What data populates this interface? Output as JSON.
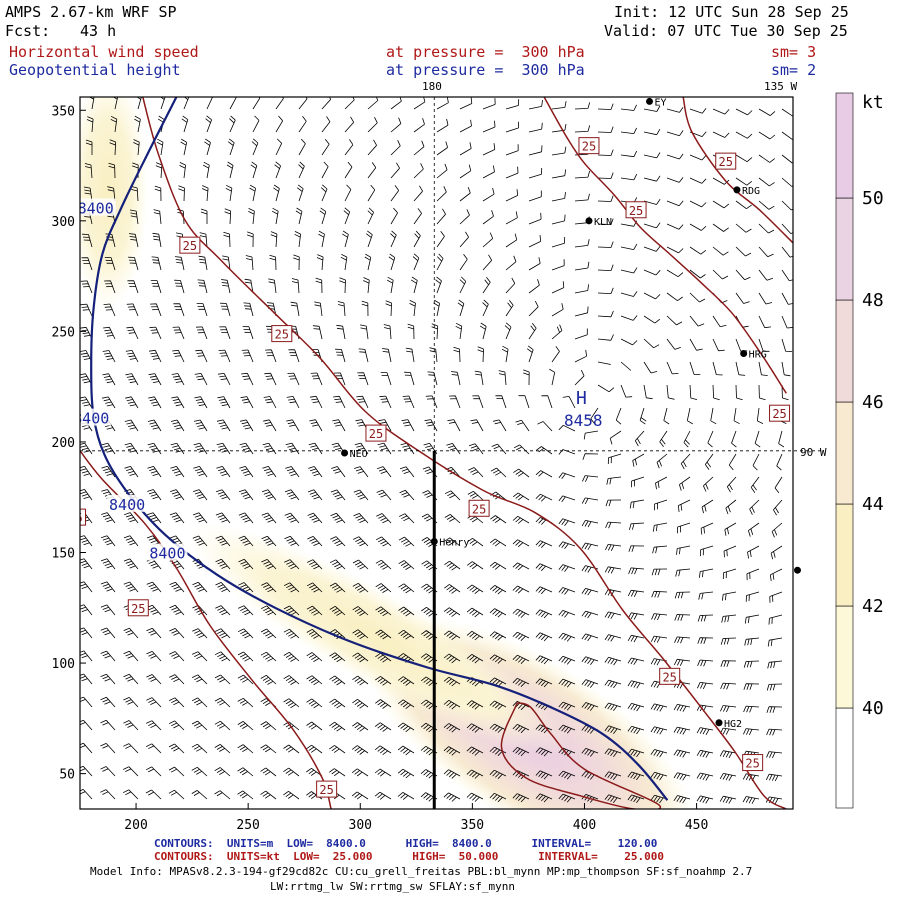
{
  "header": {
    "model": "AMPS 2.67-km WRF SP",
    "fcst_label": "Fcst:",
    "fcst_hours": "43 h",
    "init": "Init: 12 UTC Sun 28 Sep 25",
    "valid": "Valid: 07 UTC Tue 30 Sep 25",
    "field1": "Horizontal wind speed",
    "field1_level": "at pressure =  300 hPa",
    "field1_sm": "sm= 3",
    "field2": "Geopotential height",
    "field2_level": "at pressure =  300 hPa",
    "field2_sm": "sm= 2"
  },
  "map_labels": {
    "lon_180": "180",
    "lon_135w": "135 W",
    "lon_90w": "90 W",
    "high_letter": "H",
    "high_value": "8458"
  },
  "stations": [
    {
      "name": "EY",
      "x": 429,
      "y": 354
    },
    {
      "name": "RDG",
      "x": 468,
      "y": 314
    },
    {
      "name": "KLN",
      "x": 402,
      "y": 300
    },
    {
      "name": "HRG",
      "x": 471,
      "y": 240
    },
    {
      "name": "NEO",
      "x": 293,
      "y": 195
    },
    {
      "name": "Henry",
      "x": 333,
      "y": 155
    },
    {
      "name": "HG2",
      "x": 460,
      "y": 73
    },
    {
      "name": "",
      "x": 495,
      "y": 142
    }
  ],
  "footer": {
    "contours_height": "CONTOURS:  UNITS=m  LOW=  8400.0      HIGH=  8400.0      INTERVAL=    120.00",
    "contours_speed": "CONTOURS:  UNITS=kt  LOW=  25.000      HIGH=  50.000      INTERVAL=    25.000",
    "model_info": "Model Info: MPASv8.2.3-194-gf29cd82c CU:cu_grell_freitas PBL:bl_mynn MP:mp_thompson SF:sf_noahmp 2.7",
    "model_info2": "LW:rrtmg_lw SW:rrtmg_sw SFLAY:sf_mynn"
  },
  "colorbar": {
    "unit": "kt",
    "ticks": [
      "40",
      "42",
      "44",
      "46",
      "48",
      "50"
    ],
    "colors": [
      "#ffffff",
      "#fdf8d8",
      "#f9efc2",
      "#f7ead1",
      "#f1dada",
      "#ead3e2",
      "#e8cbe4"
    ]
  },
  "chart_data": {
    "type": "contour",
    "xlim": [
      175,
      493
    ],
    "ylim": [
      34,
      356
    ],
    "xticks": [
      "200",
      "250",
      "300",
      "350",
      "400",
      "450"
    ],
    "yticks": [
      "50",
      "100",
      "150",
      "200",
      "250",
      "300",
      "350"
    ],
    "reference_lines": {
      "x": 333,
      "y": 196
    },
    "cross_section_line": [
      [
        333,
        34
      ],
      [
        333,
        196
      ]
    ],
    "height_contours": [
      {
        "value": "8400",
        "label_positions": [
          [
            182,
            306
          ],
          [
            180,
            211
          ],
          [
            196,
            172
          ],
          [
            214,
            150
          ]
        ],
        "points": [
          [
            218,
            356
          ],
          [
            205,
            330
          ],
          [
            193,
            305
          ],
          [
            185,
            285
          ],
          [
            181,
            260
          ],
          [
            180,
            235
          ],
          [
            181,
            212
          ],
          [
            186,
            194
          ],
          [
            197,
            176
          ],
          [
            213,
            158
          ],
          [
            236,
            140
          ],
          [
            262,
            125
          ],
          [
            295,
            110
          ],
          [
            330,
            98
          ],
          [
            360,
            90
          ],
          [
            385,
            80
          ],
          [
            408,
            68
          ],
          [
            424,
            54
          ],
          [
            437,
            38
          ]
        ]
      }
    ],
    "speed_contours": [
      {
        "value": "25",
        "points": [
          [
            203,
            356
          ],
          [
            210,
            330
          ],
          [
            222,
            300
          ],
          [
            238,
            282
          ],
          [
            262,
            258
          ],
          [
            282,
            238
          ],
          [
            302,
            214
          ],
          [
            326,
            196
          ],
          [
            355,
            178
          ],
          [
            378,
            168
          ],
          [
            398,
            152
          ],
          [
            417,
            124
          ],
          [
            435,
            102
          ],
          [
            452,
            80
          ],
          [
            467,
            60
          ],
          [
            480,
            40
          ],
          [
            490,
            34
          ]
        ],
        "label_positions": [
          [
            224,
            289
          ],
          [
            265,
            249
          ],
          [
            307,
            204
          ],
          [
            353,
            170
          ],
          [
            438,
            94
          ],
          [
            475,
            55
          ]
        ]
      },
      {
        "value": "25",
        "points": [
          [
            175,
            196
          ],
          [
            185,
            183
          ],
          [
            204,
            163
          ],
          [
            218,
            143
          ],
          [
            233,
            117
          ],
          [
            252,
            92
          ],
          [
            270,
            70
          ],
          [
            283,
            48
          ],
          [
            287,
            34
          ]
        ],
        "label_positions": [
          [
            173,
            166
          ],
          [
            201,
            125
          ],
          [
            285,
            43
          ]
        ]
      },
      {
        "value": "25",
        "points": [
          [
            382,
            356
          ],
          [
            392,
            338
          ],
          [
            400,
            326
          ],
          [
            413,
            312
          ],
          [
            425,
            297
          ],
          [
            438,
            285
          ],
          [
            452,
            272
          ],
          [
            466,
            258
          ],
          [
            480,
            238
          ],
          [
            490,
            222
          ]
        ],
        "label_positions": [
          [
            402,
            334
          ],
          [
            423,
            305
          ],
          [
            487,
            213
          ]
        ]
      },
      {
        "value": "25",
        "points": [
          [
            444,
            356
          ],
          [
            448,
            340
          ],
          [
            463,
            318
          ],
          [
            478,
            305
          ],
          [
            493,
            290
          ]
        ],
        "label_positions": [
          [
            463,
            327
          ]
        ]
      },
      {
        "value": "50",
        "points": [
          [
            370,
            82
          ],
          [
            363,
            62
          ],
          [
            374,
            48
          ],
          [
            398,
            40
          ],
          [
            422,
            34
          ],
          [
            433,
            36
          ],
          [
            400,
            52
          ],
          [
            385,
            68
          ],
          [
            376,
            80
          ],
          [
            370,
            82
          ]
        ],
        "label_positions": []
      }
    ]
  }
}
